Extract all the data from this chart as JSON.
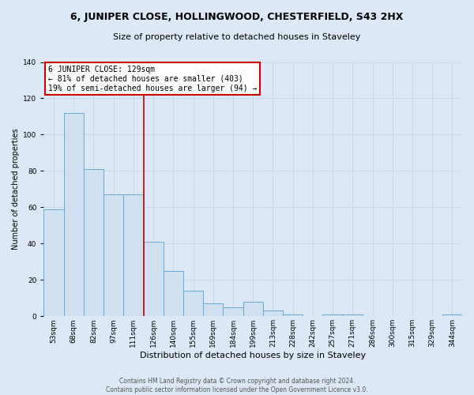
{
  "title": "6, JUNIPER CLOSE, HOLLINGWOOD, CHESTERFIELD, S43 2HX",
  "subtitle": "Size of property relative to detached houses in Staveley",
  "xlabel": "Distribution of detached houses by size in Staveley",
  "ylabel": "Number of detached properties",
  "bar_labels": [
    "53sqm",
    "68sqm",
    "82sqm",
    "97sqm",
    "111sqm",
    "126sqm",
    "140sqm",
    "155sqm",
    "169sqm",
    "184sqm",
    "199sqm",
    "213sqm",
    "228sqm",
    "242sqm",
    "257sqm",
    "271sqm",
    "286sqm",
    "300sqm",
    "315sqm",
    "329sqm",
    "344sqm"
  ],
  "bar_values": [
    59,
    112,
    81,
    67,
    67,
    41,
    25,
    14,
    7,
    5,
    8,
    3,
    1,
    0,
    1,
    1,
    0,
    0,
    0,
    0,
    1
  ],
  "bar_color": "#cfe0f0",
  "bar_edge_color": "#6aaad4",
  "property_line_x": 5,
  "annotation_line1": "6 JUNIPER CLOSE: 129sqm",
  "annotation_line2": "← 81% of detached houses are smaller (403)",
  "annotation_line3": "19% of semi-detached houses are larger (94) →",
  "annotation_box_color": "#ffffff",
  "annotation_box_edge": "#cc0000",
  "vline_color": "#cc0000",
  "footer_line1": "Contains HM Land Registry data © Crown copyright and database right 2024.",
  "footer_line2": "Contains public sector information licensed under the Open Government Licence v3.0.",
  "ylim": [
    0,
    140
  ],
  "yticks": [
    0,
    20,
    40,
    60,
    80,
    100,
    120,
    140
  ],
  "grid_color": "#c8d8ec",
  "background_color": "#dce8f5",
  "title_fontsize": 9,
  "subtitle_fontsize": 8,
  "xlabel_fontsize": 8,
  "ylabel_fontsize": 7,
  "tick_fontsize": 6.5,
  "annotation_fontsize": 7,
  "footer_fontsize": 5.5
}
